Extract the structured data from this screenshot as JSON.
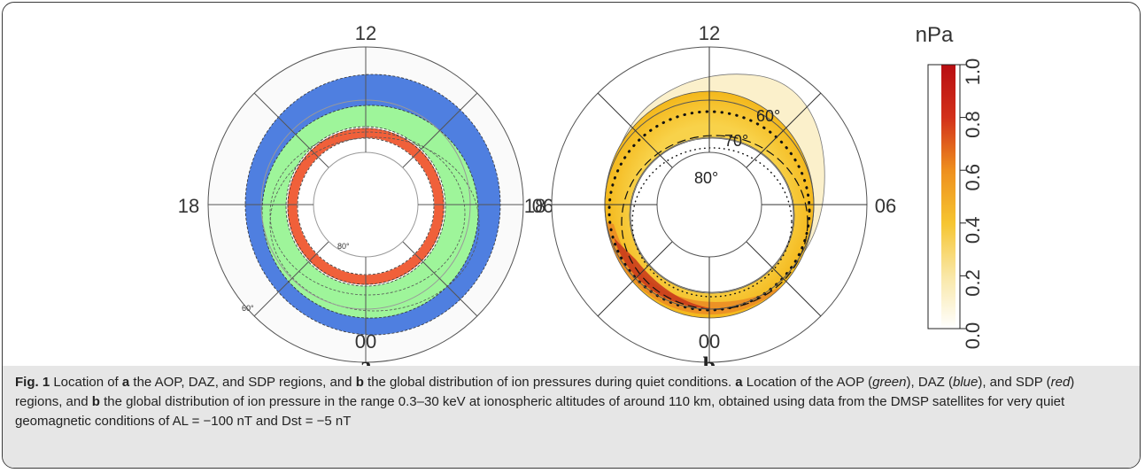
{
  "panel_a": {
    "label": "a",
    "clock": {
      "top": "12",
      "left": "18",
      "right": "06",
      "bottom": "00"
    },
    "lat_labels": {
      "inner": "80°",
      "outer": "60°"
    },
    "colors": {
      "aop": "#9ef59a",
      "daz": "#4f7fe0",
      "sdp": "#f0603a"
    }
  },
  "panel_b": {
    "label": "b",
    "clock": {
      "top": "12",
      "left": "18",
      "right": "06",
      "bottom": "00"
    },
    "lat_labels": {
      "l60": "60°",
      "l70": "70°",
      "l80": "80°"
    }
  },
  "colorbar": {
    "unit": "nPa",
    "ticks": [
      "0.0",
      "0.2",
      "0.4",
      "0.6",
      "0.8",
      "1.0"
    ],
    "colors": [
      "#ffffff",
      "#f9e7a6",
      "#f6c531",
      "#ee8f1e",
      "#d2301a",
      "#b80e12"
    ]
  },
  "caption": {
    "fig": "Fig. 1",
    "s1": " Location of ",
    "a1": "a",
    "s2": " the AOP, DAZ, and SDP regions, and ",
    "b1": "b",
    "s3": " the global distribution of ion pressures during quiet conditions. ",
    "a2": "a",
    "s4": " Location of the AOP (",
    "green": "green",
    "s5": "), DAZ (",
    "blue": "blue",
    "s6": "), and SDP (",
    "red": "red",
    "s7": ") regions, and ",
    "b2": "b",
    "s8": " the global distribution of ion pressure in the range 0.3–30 keV at ionospheric altitudes of around 110 km, obtained using data from the DMSP satellites for very quiet geomagnetic conditions of AL = −100 nT and Dst = −5 nT"
  }
}
